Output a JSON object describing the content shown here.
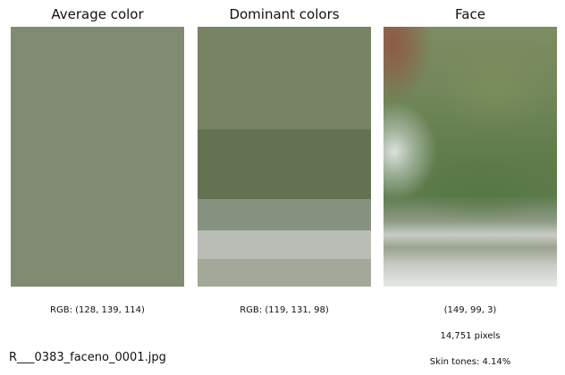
{
  "panels": {
    "average": {
      "title": "Average color",
      "color": "#808B72",
      "caption": "RGB: (128, 139, 114)"
    },
    "dominant": {
      "title": "Dominant colors",
      "caption": "RGB: (119, 131, 98)",
      "bands": [
        {
          "color": "#778362",
          "share": 0.395
        },
        {
          "color": "#637352",
          "share": 0.268
        },
        {
          "color": "#869180",
          "share": 0.12
        },
        {
          "color": "#BABCB6",
          "share": 0.11
        },
        {
          "color": "#A2A999",
          "share": 0.107
        }
      ]
    },
    "face": {
      "title": "Face",
      "caption_shape": "(149, 99, 3)",
      "caption_pixels": "14,751 pixels",
      "caption_skin": "Skin tones: 4.14%"
    }
  },
  "filename": "R___0383_faceno_0001.jpg"
}
